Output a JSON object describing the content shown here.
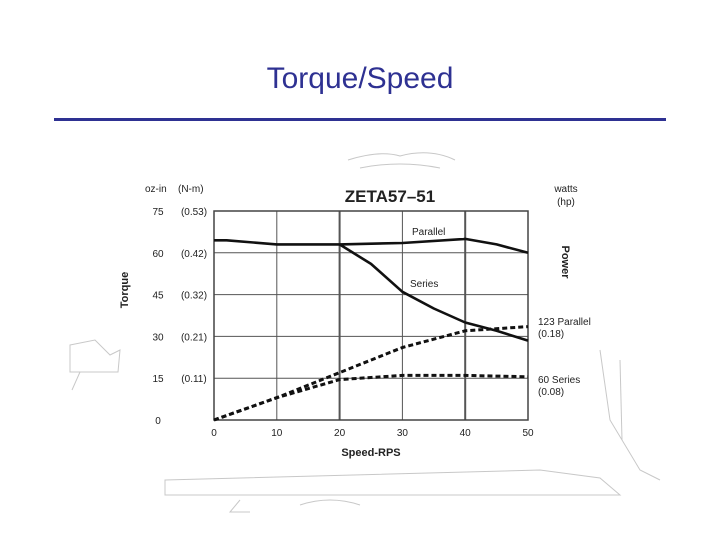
{
  "slide": {
    "title": "Torque/Speed"
  },
  "chart_data": {
    "type": "line",
    "title": "ZETA57–51",
    "xlabel": "Speed-RPS",
    "ylabel": "Torque",
    "y2label": "Power",
    "y_unit_primary": "oz-in",
    "y_unit_secondary": "(N-m)",
    "y2_unit_primary": "watts",
    "y2_unit_secondary": "(hp)",
    "xlim": [
      0,
      50
    ],
    "ylim": [
      0,
      75
    ],
    "x_ticks": [
      "0",
      "10",
      "20",
      "30",
      "40",
      "50"
    ],
    "y_ticks": [
      {
        "value": 0,
        "label": "0",
        "nm": ""
      },
      {
        "value": 15,
        "label": "15",
        "nm": "(0.11)"
      },
      {
        "value": 30,
        "label": "30",
        "nm": "(0.21)"
      },
      {
        "value": 45,
        "label": "45",
        "nm": "(0.32)"
      },
      {
        "value": 60,
        "label": "60",
        "nm": "(0.42)"
      },
      {
        "value": 75,
        "label": "75",
        "nm": "(0.53)"
      }
    ],
    "grid": true,
    "series": [
      {
        "name": "Parallel",
        "style": "solid",
        "x": [
          0,
          2,
          10,
          20,
          30,
          40,
          45,
          50
        ],
        "y": [
          64.5,
          64.5,
          63,
          63,
          63.5,
          65,
          63,
          60
        ]
      },
      {
        "name": "Series",
        "style": "solid",
        "x": [
          20,
          25,
          30,
          35,
          40,
          45,
          50
        ],
        "y": [
          63,
          56,
          46,
          40,
          35,
          32,
          28.5
        ]
      },
      {
        "name": "Parallel",
        "label": "123 Parallel",
        "sublabel": "(0.18)",
        "style": "dashed",
        "x": [
          0,
          10,
          20,
          30,
          40,
          50
        ],
        "y": [
          0,
          8,
          17,
          26,
          32,
          33.5
        ]
      },
      {
        "name": "Series",
        "label": "60 Series",
        "sublabel": "(0.08)",
        "style": "dashed",
        "x": [
          0,
          10,
          20,
          30,
          40,
          50
        ],
        "y": [
          0,
          8,
          14.5,
          16,
          16,
          15.5
        ]
      }
    ]
  }
}
